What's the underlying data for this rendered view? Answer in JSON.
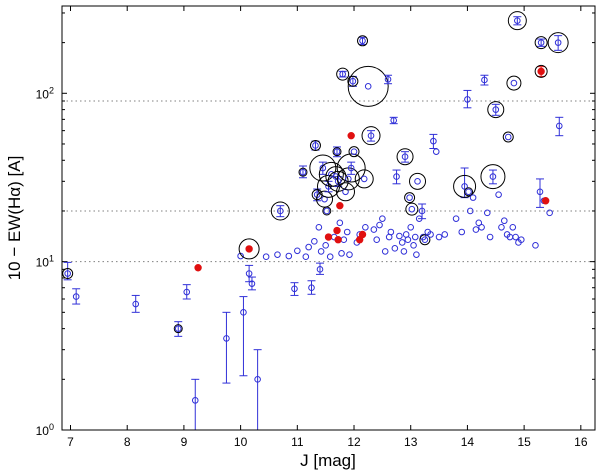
{
  "chart_data": {
    "type": "scatter",
    "title": "",
    "xlabel": "J [mag]",
    "ylabel": "10 − EW(Hα) [A]",
    "xlim": [
      6.85,
      16.25
    ],
    "ylim": [
      1,
      330
    ],
    "y_scale": "log",
    "x_ticks": [
      7,
      8,
      9,
      10,
      11,
      12,
      13,
      14,
      15,
      16
    ],
    "y_ticks": [
      {
        "value": 1,
        "base": "10",
        "exp": "0"
      },
      {
        "value": 10,
        "base": "10",
        "exp": "1"
      },
      {
        "value": 100,
        "base": "10",
        "exp": "2"
      }
    ],
    "reference_lines_y": [
      10,
      20,
      90
    ],
    "colors": {
      "open": "#3030d8",
      "filled": "#e01010",
      "ring": "#000000",
      "reference": "#808080"
    },
    "series": [
      {
        "marker": "open-circle",
        "points": [
          {
            "x": 6.95,
            "y": 8.5,
            "lo": 7.8,
            "hi": 9.9,
            "ring": 5
          },
          {
            "x": 7.1,
            "y": 6.2,
            "lo": 5.6,
            "hi": 6.9
          },
          {
            "x": 8.15,
            "y": 5.6,
            "lo": 5.0,
            "hi": 6.3
          },
          {
            "x": 8.9,
            "y": 4.0,
            "lo": 3.6,
            "hi": 4.4,
            "ring": 4
          },
          {
            "x": 9.05,
            "y": 6.6,
            "lo": 6.0,
            "hi": 7.3
          },
          {
            "x": 9.2,
            "y": 1.5,
            "lo": 1.0,
            "hi": 2.0
          },
          {
            "x": 9.75,
            "y": 3.5,
            "lo": 1.9,
            "hi": 5.0
          },
          {
            "x": 10.0,
            "y": 10.8
          },
          {
            "x": 10.05,
            "y": 5.0,
            "lo": 2.1,
            "hi": 6.2
          },
          {
            "x": 10.15,
            "y": 8.5,
            "lo": 7.6,
            "hi": 9.5
          },
          {
            "x": 10.2,
            "y": 7.4,
            "lo": 6.8,
            "hi": 8.1
          },
          {
            "x": 10.3,
            "y": 2.0,
            "lo": 1.0,
            "hi": 3.0
          },
          {
            "x": 10.45,
            "y": 10.7
          },
          {
            "x": 10.65,
            "y": 11.0
          },
          {
            "x": 10.7,
            "y": 20.0,
            "lo": 18.5,
            "hi": 21.5,
            "ring": 9
          },
          {
            "x": 10.85,
            "y": 10.8
          },
          {
            "x": 10.95,
            "y": 6.9,
            "lo": 6.3,
            "hi": 7.5
          },
          {
            "x": 11.0,
            "y": 11.6
          },
          {
            "x": 11.1,
            "y": 34.0,
            "lo": 31.5,
            "hi": 37.0,
            "ring": 4
          },
          {
            "x": 11.15,
            "y": 10.7
          },
          {
            "x": 11.2,
            "y": 12.2
          },
          {
            "x": 11.25,
            "y": 7.0,
            "lo": 6.4,
            "hi": 7.7
          },
          {
            "x": 11.3,
            "y": 13.2
          },
          {
            "x": 11.32,
            "y": 49.0,
            "lo": 46.0,
            "hi": 52.0,
            "ring": 5
          },
          {
            "x": 11.35,
            "y": 25.0,
            "lo": 23.0,
            "hi": 27.0,
            "ring": 5
          },
          {
            "x": 11.38,
            "y": 16.0
          },
          {
            "x": 11.4,
            "y": 9.0,
            "lo": 8.4,
            "hi": 9.8
          },
          {
            "x": 11.42,
            "y": 11.5
          },
          {
            "x": 11.45,
            "y": 36.0,
            "lo": 33.0,
            "hi": 39.0,
            "ring": 13
          },
          {
            "x": 11.48,
            "y": 23.5,
            "ring": 8
          },
          {
            "x": 11.5,
            "y": 12.5
          },
          {
            "x": 11.52,
            "y": 20.0,
            "ring": 4
          },
          {
            "x": 11.55,
            "y": 28.0,
            "lo": 26.0,
            "hi": 30.0,
            "ring": 11
          },
          {
            "x": 11.58,
            "y": 10.7
          },
          {
            "x": 11.6,
            "y": 33.0,
            "ring": 12
          },
          {
            "x": 11.65,
            "y": 14.0
          },
          {
            "x": 11.68,
            "y": 32.0,
            "ring": 10
          },
          {
            "x": 11.7,
            "y": 45.0,
            "lo": 42.0,
            "hi": 48.0,
            "ring": 4
          },
          {
            "x": 11.72,
            "y": 30.0,
            "lo": 28.0,
            "hi": 32.0,
            "ring": 10
          },
          {
            "x": 11.75,
            "y": 17.0
          },
          {
            "x": 11.78,
            "y": 11.2
          },
          {
            "x": 11.8,
            "y": 130.0,
            "lo": 125.0,
            "hi": 135.0,
            "ring": 6
          },
          {
            "x": 11.82,
            "y": 13.5
          },
          {
            "x": 11.85,
            "y": 26.0,
            "ring": 9
          },
          {
            "x": 11.88,
            "y": 15.0
          },
          {
            "x": 11.9,
            "y": 31.0,
            "ring": 11
          },
          {
            "x": 11.92,
            "y": 11.0
          },
          {
            "x": 11.95,
            "y": 36.0,
            "lo": 33.0,
            "hi": 39.0,
            "ring": 14
          },
          {
            "x": 11.98,
            "y": 118.0,
            "lo": 110.0,
            "hi": 126.0,
            "ring": 5
          },
          {
            "x": 12.0,
            "y": 45.0,
            "ring": 5
          },
          {
            "x": 12.05,
            "y": 13.0
          },
          {
            "x": 12.1,
            "y": 14.5
          },
          {
            "x": 12.15,
            "y": 205.0,
            "lo": 195.0,
            "hi": 215.0,
            "ring": 5
          },
          {
            "x": 12.18,
            "y": 31.0,
            "ring": 9
          },
          {
            "x": 12.2,
            "y": 16.0
          },
          {
            "x": 12.25,
            "y": 110.0,
            "ring": 20
          },
          {
            "x": 12.3,
            "y": 56.0,
            "lo": 52.0,
            "hi": 60.0,
            "ring": 9
          },
          {
            "x": 12.35,
            "y": 15.5
          },
          {
            "x": 12.4,
            "y": 13.5
          },
          {
            "x": 12.45,
            "y": 16.5
          },
          {
            "x": 12.5,
            "y": 18.0
          },
          {
            "x": 12.55,
            "y": 11.5
          },
          {
            "x": 12.6,
            "y": 121.0,
            "lo": 114.0,
            "hi": 128.0
          },
          {
            "x": 12.62,
            "y": 14.0
          },
          {
            "x": 12.65,
            "y": 15.0
          },
          {
            "x": 12.7,
            "y": 69.0,
            "lo": 66.0,
            "hi": 72.0
          },
          {
            "x": 12.72,
            "y": 12.0
          },
          {
            "x": 12.75,
            "y": 32.0,
            "lo": 29.0,
            "hi": 35.0
          },
          {
            "x": 12.8,
            "y": 14.2
          },
          {
            "x": 12.85,
            "y": 13.0
          },
          {
            "x": 12.88,
            "y": 11.5
          },
          {
            "x": 12.9,
            "y": 42.0,
            "lo": 39.0,
            "hi": 45.0,
            "ring": 8
          },
          {
            "x": 12.92,
            "y": 14.5
          },
          {
            "x": 12.95,
            "y": 13.5
          },
          {
            "x": 12.98,
            "y": 24.0,
            "ring": 5
          },
          {
            "x": 13.0,
            "y": 16.0
          },
          {
            "x": 13.02,
            "y": 20.5,
            "ring": 6
          },
          {
            "x": 13.05,
            "y": 12.5
          },
          {
            "x": 13.08,
            "y": 14.0
          },
          {
            "x": 13.1,
            "y": 11.0
          },
          {
            "x": 13.12,
            "y": 30.0,
            "ring": 8
          },
          {
            "x": 13.15,
            "y": 18.0
          },
          {
            "x": 13.2,
            "y": 20.0,
            "lo": 18.0,
            "hi": 22.0
          },
          {
            "x": 13.22,
            "y": 14.0
          },
          {
            "x": 13.25,
            "y": 13.5,
            "ring": 5
          },
          {
            "x": 13.3,
            "y": 15.0
          },
          {
            "x": 13.35,
            "y": 14.5
          },
          {
            "x": 13.4,
            "y": 52.0,
            "lo": 47.0,
            "hi": 57.0
          },
          {
            "x": 13.45,
            "y": 45.0
          },
          {
            "x": 13.5,
            "y": 14.0
          },
          {
            "x": 13.6,
            "y": 14.5
          },
          {
            "x": 13.8,
            "y": 18.0
          },
          {
            "x": 13.9,
            "y": 15.0
          },
          {
            "x": 13.95,
            "y": 28.0,
            "lo": 24.0,
            "hi": 36.0,
            "ring": 11
          },
          {
            "x": 14.0,
            "y": 92.0,
            "lo": 82.0,
            "hi": 104.0
          },
          {
            "x": 14.02,
            "y": 26.0,
            "ring": 4
          },
          {
            "x": 14.05,
            "y": 20.0
          },
          {
            "x": 14.1,
            "y": 24.0
          },
          {
            "x": 14.15,
            "y": 15.5
          },
          {
            "x": 14.2,
            "y": 17.0
          },
          {
            "x": 14.25,
            "y": 16.0
          },
          {
            "x": 14.3,
            "y": 120.0,
            "lo": 112.0,
            "hi": 128.0
          },
          {
            "x": 14.35,
            "y": 19.5
          },
          {
            "x": 14.4,
            "y": 14.0
          },
          {
            "x": 14.45,
            "y": 32.0,
            "lo": 29.0,
            "hi": 35.0,
            "ring": 12
          },
          {
            "x": 14.5,
            "y": 80.0,
            "lo": 74.0,
            "hi": 86.0,
            "ring": 8
          },
          {
            "x": 14.55,
            "y": 25.0
          },
          {
            "x": 14.6,
            "y": 16.0
          },
          {
            "x": 14.65,
            "y": 17.5
          },
          {
            "x": 14.7,
            "y": 14.5
          },
          {
            "x": 14.72,
            "y": 55.0,
            "ring": 5
          },
          {
            "x": 14.75,
            "y": 14.0
          },
          {
            "x": 14.8,
            "y": 16.0
          },
          {
            "x": 14.82,
            "y": 115.0,
            "ring": 7
          },
          {
            "x": 14.85,
            "y": 14.0
          },
          {
            "x": 14.88,
            "y": 270.0,
            "lo": 255.0,
            "hi": 285.0,
            "ring": 9
          },
          {
            "x": 14.9,
            "y": 13.0
          },
          {
            "x": 14.95,
            "y": 13.5
          },
          {
            "x": 15.2,
            "y": 12.5
          },
          {
            "x": 15.28,
            "y": 26.0,
            "lo": 21.0,
            "hi": 31.0
          },
          {
            "x": 15.3,
            "y": 200.0,
            "lo": 190.0,
            "hi": 210.0,
            "ring": 6
          },
          {
            "x": 15.35,
            "y": 23.0
          },
          {
            "x": 15.45,
            "y": 19.5
          },
          {
            "x": 15.6,
            "y": 200.0,
            "lo": 180.0,
            "hi": 220.0,
            "ring": 10
          },
          {
            "x": 15.62,
            "y": 64.0,
            "lo": 56.0,
            "hi": 72.0
          }
        ]
      },
      {
        "marker": "filled-circle",
        "points": [
          {
            "x": 9.25,
            "y": 9.2
          },
          {
            "x": 10.15,
            "y": 11.9,
            "ring": 10
          },
          {
            "x": 11.55,
            "y": 14.0
          },
          {
            "x": 11.7,
            "y": 15.3
          },
          {
            "x": 11.72,
            "y": 13.5
          },
          {
            "x": 11.75,
            "y": 21.5
          },
          {
            "x": 11.95,
            "y": 56.0
          },
          {
            "x": 12.1,
            "y": 13.5
          },
          {
            "x": 12.15,
            "y": 14.5
          },
          {
            "x": 15.3,
            "y": 135.0,
            "lo": 126.0,
            "hi": 144.0,
            "ring": 6
          },
          {
            "x": 15.38,
            "y": 23.0
          }
        ]
      }
    ]
  }
}
